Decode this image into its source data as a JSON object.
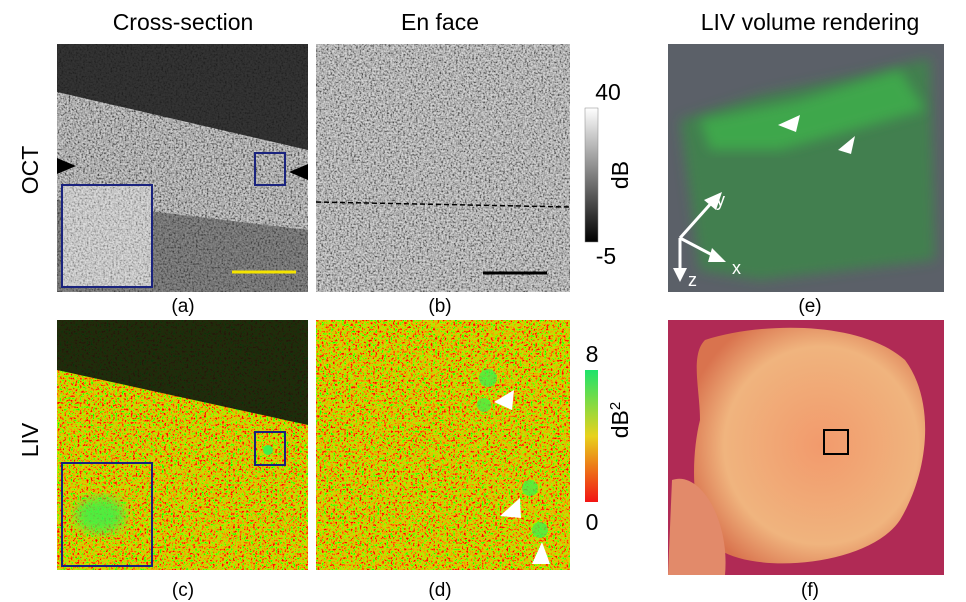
{
  "headers": [
    "Cross-section",
    "En face",
    "LIV volume rendering"
  ],
  "row_labels": [
    "OCT",
    "LIV"
  ],
  "panel_labels": [
    "(a)",
    "(b)",
    "(c)",
    "(d)",
    "(e)",
    "(f)"
  ],
  "oct_colorbar": {
    "max": 40,
    "min": -5,
    "unit": "dB"
  },
  "liv_colorbar": {
    "max": 8,
    "min": 0,
    "unit": "dB",
    "unit_sup": "2"
  },
  "axes": [
    "x",
    "y",
    "z"
  ]
}
